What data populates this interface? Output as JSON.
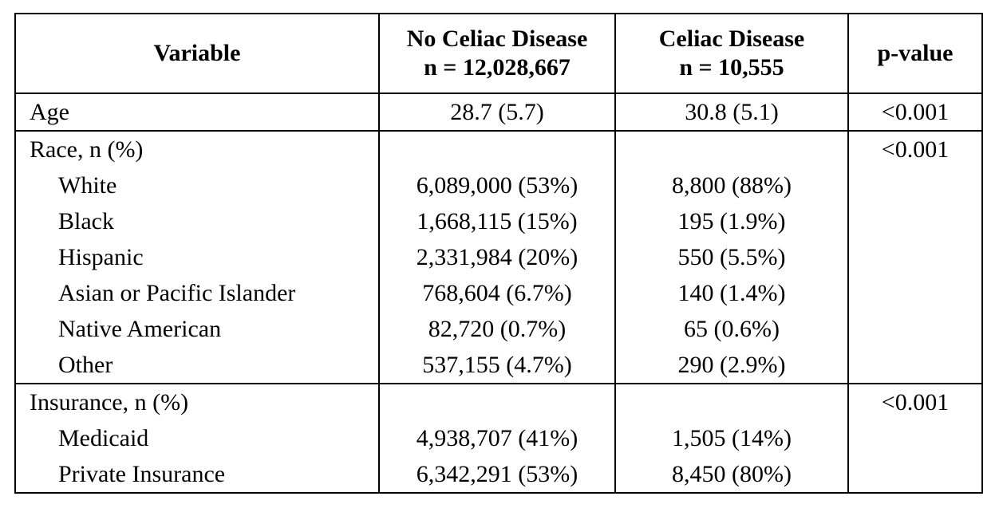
{
  "table": {
    "headers": {
      "variable": "Variable",
      "no_celiac": [
        "No Celiac Disease",
        "n = 12,028,667"
      ],
      "celiac": [
        "Celiac Disease",
        "n = 10,555"
      ],
      "pvalue": "p-value"
    },
    "age": {
      "label": "Age",
      "no_celiac": "28.7 (5.7)",
      "celiac": "30.8 (5.1)",
      "pvalue": "<0.001"
    },
    "race": {
      "label": "Race, n (%)",
      "pvalue": "<0.001",
      "rows": [
        {
          "label": "White",
          "no_celiac": "6,089,000 (53%)",
          "celiac": "8,800 (88%)"
        },
        {
          "label": "Black",
          "no_celiac": "1,668,115 (15%)",
          "celiac": "195 (1.9%)"
        },
        {
          "label": "Hispanic",
          "no_celiac": "2,331,984 (20%)",
          "celiac": "550 (5.5%)"
        },
        {
          "label": "Asian or Pacific Islander",
          "no_celiac": "768,604 (6.7%)",
          "celiac": "140 (1.4%)"
        },
        {
          "label": "Native American",
          "no_celiac": "82,720 (0.7%)",
          "celiac": "65 (0.6%)"
        },
        {
          "label": "Other",
          "no_celiac": "537,155 (4.7%)",
          "celiac": "290 (2.9%)"
        }
      ]
    },
    "insurance": {
      "label": "Insurance, n (%)",
      "pvalue": "<0.001",
      "rows": [
        {
          "label": "Medicaid",
          "no_celiac": "4,938,707 (41%)",
          "celiac": "1,505 (14%)"
        },
        {
          "label": "Private Insurance",
          "no_celiac": "6,342,291 (53%)",
          "celiac": "8,450 (80%)"
        }
      ]
    }
  }
}
